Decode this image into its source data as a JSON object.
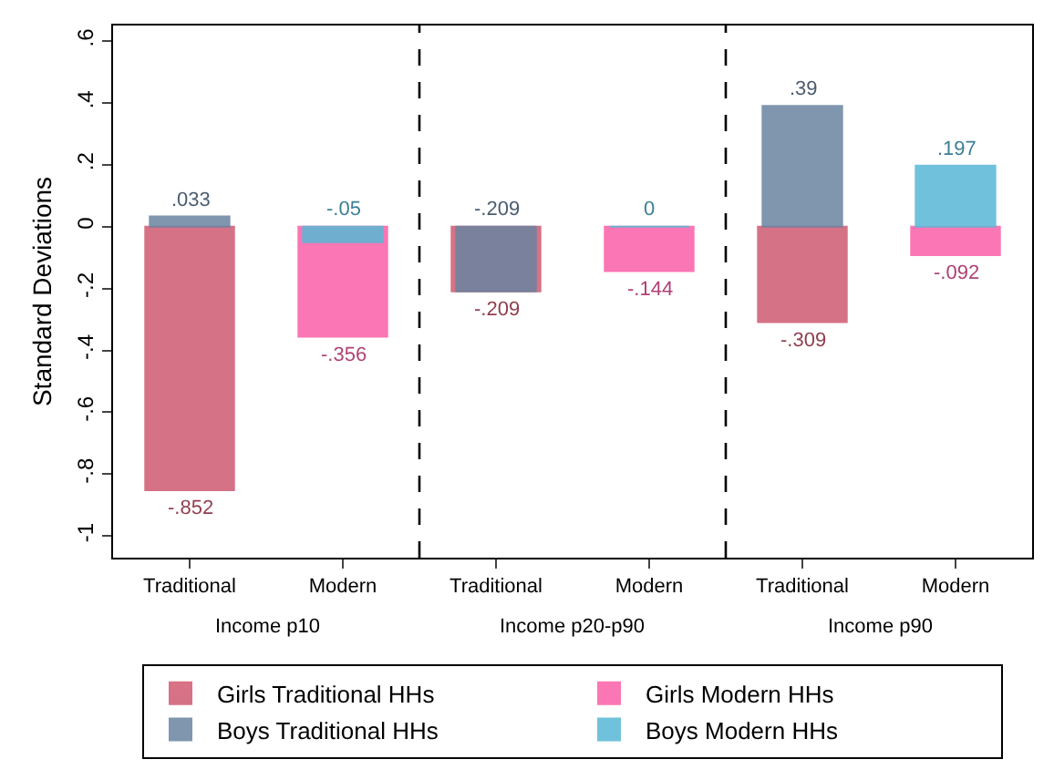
{
  "chart_data": {
    "type": "bar",
    "ylabel": "Standard Deviations",
    "categories": [
      "Traditional",
      "Modern",
      "Traditional",
      "Modern",
      "Traditional",
      "Modern"
    ],
    "annotations": [
      "Income p10",
      "Income p20-p90",
      "Income p90"
    ],
    "series": [
      {
        "name": "Girls Traditional HHs",
        "color": "#d05a72",
        "values": [
          -0.852,
          null,
          -0.209,
          null,
          -0.309,
          null
        ],
        "value_labels": [
          "-.852",
          null,
          "-.209",
          null,
          "-.309",
          null
        ]
      },
      {
        "name": "Girls Modern HHs",
        "color": "#fb5fa8",
        "values": [
          null,
          -0.356,
          null,
          -0.144,
          null,
          -0.092
        ],
        "value_labels": [
          null,
          "-.356",
          null,
          "-.144",
          null,
          "-.092"
        ]
      },
      {
        "name": "Boys Traditional HHs",
        "color": "#6a84a0",
        "values": [
          0.033,
          null,
          -0.209,
          null,
          0.39,
          null
        ],
        "value_labels": [
          ".033",
          null,
          "-.209",
          null,
          ".39",
          null
        ]
      },
      {
        "name": "Boys Modern HHs",
        "color": "#58b8d6",
        "values": [
          null,
          -0.05,
          null,
          0,
          null,
          0.197
        ],
        "value_labels": [
          null,
          "-.05",
          null,
          "0",
          null,
          ".197"
        ]
      }
    ],
    "ylim": [
      -1.07,
      0.65
    ],
    "yticks": [
      {
        "value": -1,
        "label": "-1"
      },
      {
        "value": -0.8,
        "label": "-.8"
      },
      {
        "value": -0.6,
        "label": "-.6"
      },
      {
        "value": -0.4,
        "label": "-.4"
      },
      {
        "value": -0.2,
        "label": "-.2"
      },
      {
        "value": 0,
        "label": "0"
      },
      {
        "value": 0.2,
        "label": ".2"
      },
      {
        "value": 0.4,
        "label": ".4"
      },
      {
        "value": 0.6,
        "label": ".6"
      }
    ],
    "legend": "bottom"
  }
}
